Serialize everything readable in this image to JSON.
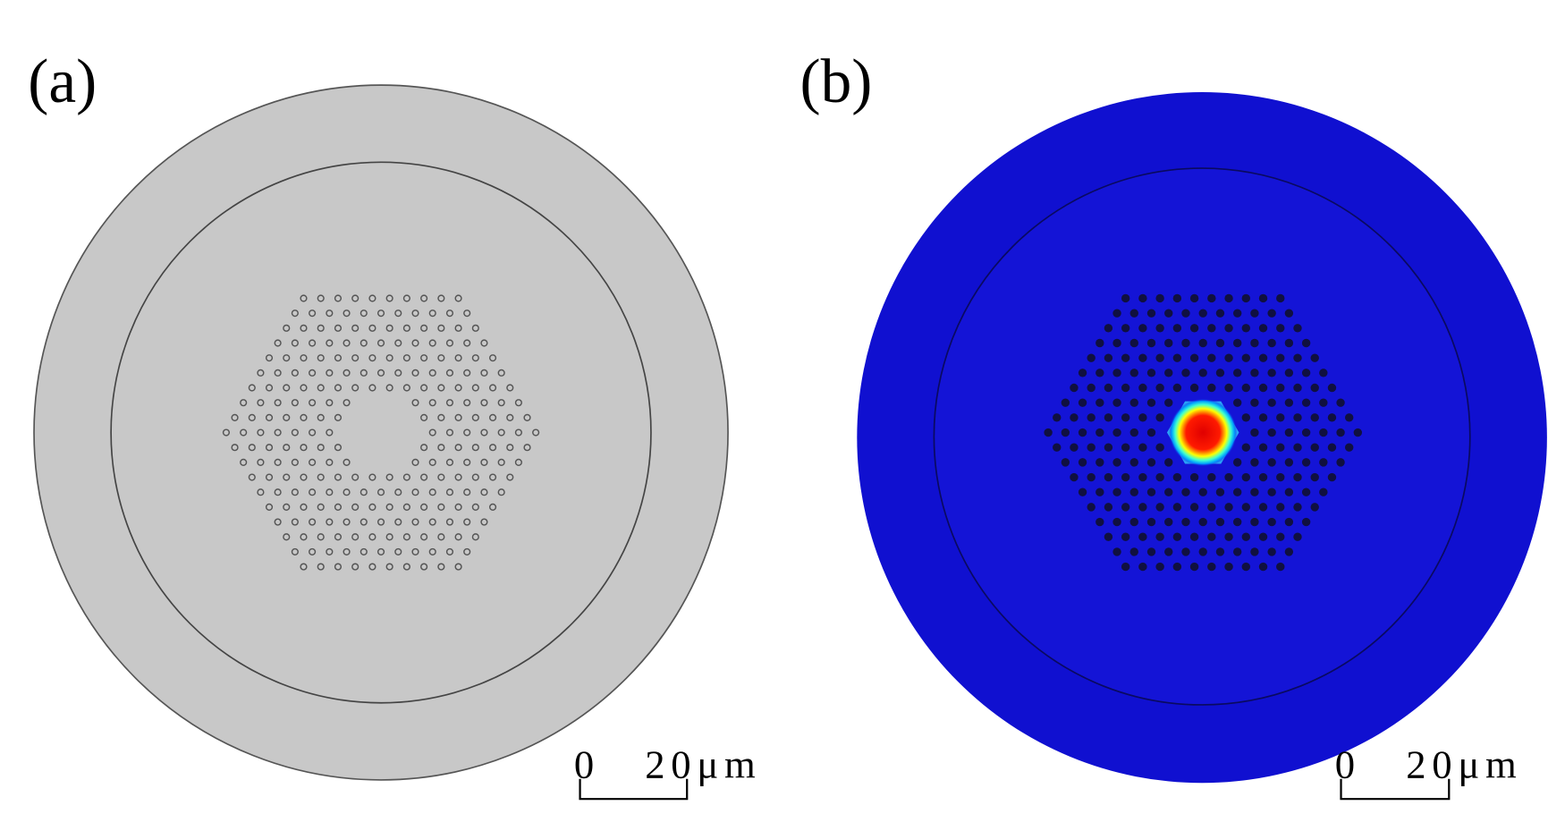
{
  "panels": [
    {
      "label": "(a)",
      "scale_bar": {
        "start": "0",
        "end": "20μm"
      }
    },
    {
      "label": "(b)",
      "scale_bar": {
        "start": "0",
        "end": "20μm"
      }
    }
  ]
}
